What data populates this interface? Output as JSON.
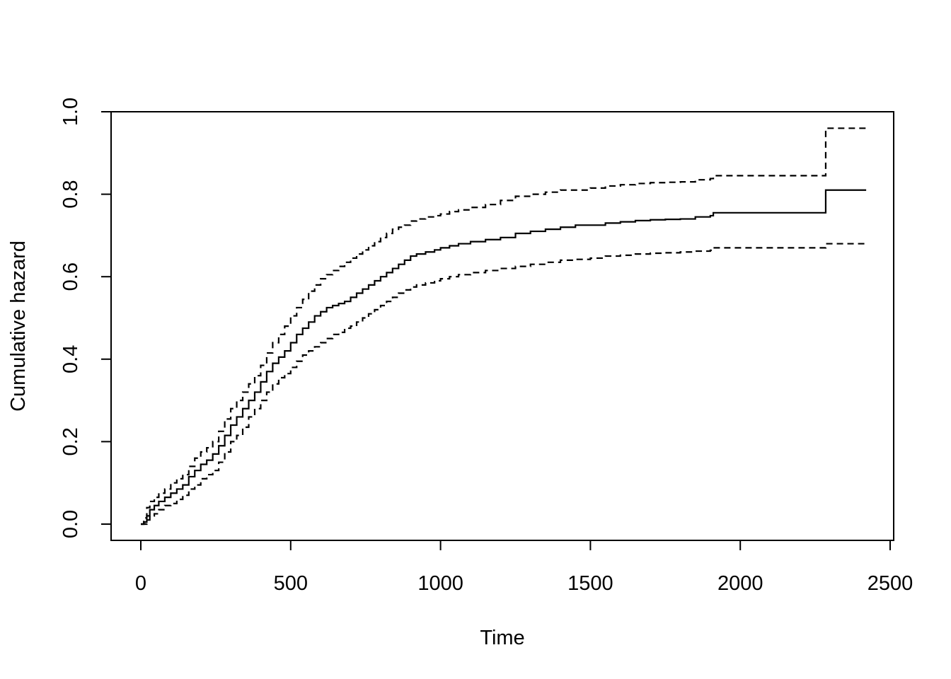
{
  "chart_data": {
    "type": "line",
    "title": "",
    "xlabel": "Time",
    "ylabel": "Cumulative hazard",
    "xlim": [
      0,
      2500
    ],
    "ylim": [
      0,
      1
    ],
    "xticks": [
      "0",
      "500",
      "1000",
      "1500",
      "2000",
      "2500"
    ],
    "yticks": [
      "0.0",
      "0.2",
      "0.4",
      "0.6",
      "0.8",
      "1.0"
    ],
    "xtick_values": [
      0,
      500,
      1000,
      1500,
      2000,
      2500
    ],
    "ytick_values": [
      0,
      0.2,
      0.4,
      0.6,
      0.8,
      1.0
    ],
    "grid": false,
    "legend": "none",
    "line_color": "#000000",
    "series": [
      {
        "style": "solid",
        "x": [
          0,
          10,
          20,
          30,
          45,
          60,
          80,
          100,
          120,
          140,
          160,
          180,
          200,
          220,
          240,
          260,
          280,
          300,
          320,
          340,
          360,
          380,
          400,
          420,
          440,
          460,
          480,
          500,
          520,
          540,
          560,
          580,
          600,
          620,
          640,
          660,
          680,
          700,
          720,
          740,
          760,
          780,
          800,
          820,
          840,
          860,
          880,
          900,
          920,
          950,
          980,
          1000,
          1030,
          1060,
          1100,
          1150,
          1200,
          1250,
          1300,
          1350,
          1400,
          1450,
          1500,
          1550,
          1600,
          1650,
          1700,
          1750,
          1800,
          1830,
          1850,
          1900,
          1910,
          2000,
          2100,
          2200,
          2280,
          2285,
          2300,
          2420
        ],
        "y": [
          0.0,
          0.005,
          0.02,
          0.035,
          0.045,
          0.055,
          0.065,
          0.075,
          0.085,
          0.095,
          0.115,
          0.13,
          0.145,
          0.155,
          0.17,
          0.19,
          0.215,
          0.24,
          0.26,
          0.28,
          0.3,
          0.32,
          0.345,
          0.37,
          0.39,
          0.405,
          0.42,
          0.44,
          0.46,
          0.475,
          0.49,
          0.505,
          0.515,
          0.525,
          0.53,
          0.535,
          0.54,
          0.55,
          0.56,
          0.57,
          0.58,
          0.59,
          0.6,
          0.61,
          0.62,
          0.63,
          0.64,
          0.65,
          0.655,
          0.66,
          0.665,
          0.67,
          0.675,
          0.68,
          0.685,
          0.69,
          0.695,
          0.705,
          0.71,
          0.715,
          0.72,
          0.725,
          0.725,
          0.73,
          0.733,
          0.736,
          0.738,
          0.739,
          0.74,
          0.74,
          0.745,
          0.748,
          0.755,
          0.755,
          0.755,
          0.755,
          0.755,
          0.81,
          0.81,
          0.81
        ]
      },
      {
        "style": "dashed",
        "x": [
          0,
          10,
          20,
          30,
          45,
          60,
          80,
          100,
          120,
          140,
          160,
          180,
          200,
          220,
          240,
          260,
          280,
          300,
          320,
          340,
          360,
          380,
          400,
          420,
          440,
          460,
          480,
          500,
          520,
          540,
          560,
          580,
          600,
          620,
          640,
          660,
          680,
          700,
          720,
          740,
          760,
          780,
          800,
          820,
          840,
          860,
          880,
          900,
          920,
          950,
          980,
          1000,
          1030,
          1060,
          1100,
          1150,
          1200,
          1250,
          1300,
          1350,
          1400,
          1450,
          1500,
          1550,
          1600,
          1650,
          1700,
          1750,
          1800,
          1830,
          1850,
          1900,
          1910,
          2000,
          2100,
          2200,
          2280,
          2285,
          2300,
          2420
        ],
        "y": [
          0.0,
          0.015,
          0.04,
          0.055,
          0.065,
          0.075,
          0.085,
          0.1,
          0.11,
          0.12,
          0.14,
          0.16,
          0.175,
          0.185,
          0.2,
          0.225,
          0.255,
          0.28,
          0.3,
          0.32,
          0.34,
          0.36,
          0.385,
          0.415,
          0.44,
          0.46,
          0.48,
          0.505,
          0.525,
          0.545,
          0.565,
          0.58,
          0.595,
          0.605,
          0.615,
          0.625,
          0.635,
          0.645,
          0.655,
          0.665,
          0.675,
          0.685,
          0.695,
          0.705,
          0.715,
          0.72,
          0.725,
          0.735,
          0.74,
          0.745,
          0.748,
          0.752,
          0.758,
          0.762,
          0.768,
          0.775,
          0.785,
          0.795,
          0.8,
          0.805,
          0.81,
          0.81,
          0.815,
          0.82,
          0.823,
          0.826,
          0.828,
          0.829,
          0.83,
          0.83,
          0.835,
          0.838,
          0.845,
          0.845,
          0.845,
          0.845,
          0.845,
          0.96,
          0.96,
          0.96
        ]
      },
      {
        "style": "dashed",
        "x": [
          0,
          10,
          20,
          30,
          45,
          60,
          80,
          100,
          120,
          140,
          160,
          180,
          200,
          220,
          240,
          260,
          280,
          300,
          320,
          340,
          360,
          380,
          400,
          420,
          440,
          460,
          480,
          500,
          520,
          540,
          560,
          580,
          600,
          620,
          640,
          660,
          680,
          700,
          720,
          740,
          760,
          780,
          800,
          820,
          840,
          860,
          880,
          900,
          920,
          950,
          980,
          1000,
          1030,
          1060,
          1100,
          1150,
          1200,
          1250,
          1300,
          1350,
          1400,
          1450,
          1500,
          1550,
          1600,
          1650,
          1700,
          1750,
          1800,
          1830,
          1850,
          1900,
          1910,
          2000,
          2100,
          2200,
          2280,
          2285,
          2300,
          2420
        ],
        "y": [
          0.0,
          0.0,
          0.01,
          0.02,
          0.025,
          0.035,
          0.045,
          0.05,
          0.06,
          0.07,
          0.085,
          0.095,
          0.11,
          0.12,
          0.13,
          0.15,
          0.175,
          0.2,
          0.215,
          0.235,
          0.26,
          0.28,
          0.3,
          0.32,
          0.34,
          0.355,
          0.365,
          0.38,
          0.395,
          0.41,
          0.42,
          0.43,
          0.44,
          0.45,
          0.46,
          0.465,
          0.475,
          0.48,
          0.49,
          0.5,
          0.51,
          0.52,
          0.53,
          0.54,
          0.55,
          0.56,
          0.568,
          0.575,
          0.58,
          0.585,
          0.59,
          0.595,
          0.6,
          0.605,
          0.61,
          0.615,
          0.62,
          0.625,
          0.63,
          0.635,
          0.64,
          0.642,
          0.645,
          0.65,
          0.652,
          0.655,
          0.657,
          0.658,
          0.66,
          0.66,
          0.662,
          0.664,
          0.67,
          0.67,
          0.67,
          0.67,
          0.67,
          0.68,
          0.68,
          0.68
        ]
      }
    ]
  }
}
